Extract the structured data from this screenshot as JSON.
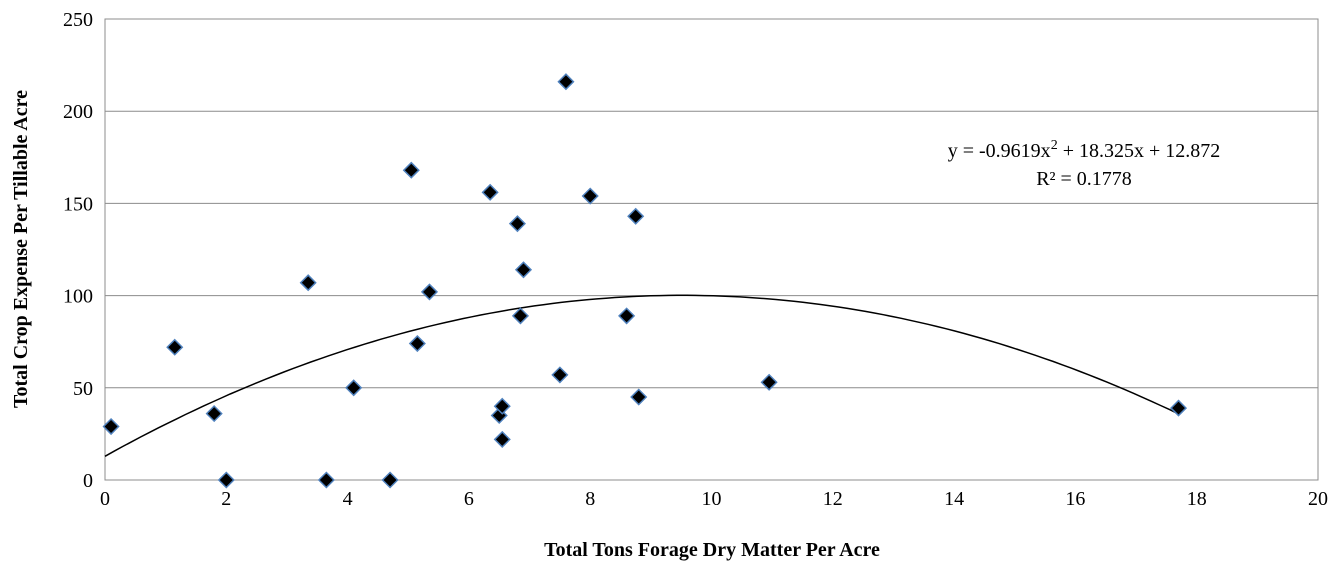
{
  "chart_data": {
    "type": "scatter",
    "xlabel": "Total Tons Forage Dry Matter Per Acre",
    "ylabel": "Total Crop Expense Per Tillable Acre",
    "xlim": [
      0,
      20
    ],
    "ylim": [
      0,
      250
    ],
    "x_ticks": [
      0,
      2,
      4,
      6,
      8,
      10,
      12,
      14,
      16,
      18,
      20
    ],
    "y_ticks": [
      0,
      50,
      100,
      150,
      200,
      250
    ],
    "grid": "horizontal",
    "marker": "diamond",
    "marker_color": "#000000",
    "marker_edge_color": "#4f81bd",
    "points": [
      {
        "x": 0.1,
        "y": 29
      },
      {
        "x": 1.15,
        "y": 72
      },
      {
        "x": 1.8,
        "y": 36
      },
      {
        "x": 2.0,
        "y": 0
      },
      {
        "x": 3.35,
        "y": 107
      },
      {
        "x": 3.65,
        "y": 0
      },
      {
        "x": 4.1,
        "y": 50
      },
      {
        "x": 4.7,
        "y": 0
      },
      {
        "x": 5.05,
        "y": 168
      },
      {
        "x": 5.15,
        "y": 74
      },
      {
        "x": 5.35,
        "y": 102
      },
      {
        "x": 6.35,
        "y": 156
      },
      {
        "x": 6.5,
        "y": 35
      },
      {
        "x": 6.55,
        "y": 40
      },
      {
        "x": 6.55,
        "y": 22
      },
      {
        "x": 6.8,
        "y": 139
      },
      {
        "x": 6.85,
        "y": 89
      },
      {
        "x": 6.9,
        "y": 114
      },
      {
        "x": 7.5,
        "y": 57
      },
      {
        "x": 7.6,
        "y": 216
      },
      {
        "x": 8.0,
        "y": 154
      },
      {
        "x": 8.6,
        "y": 89
      },
      {
        "x": 8.75,
        "y": 143
      },
      {
        "x": 8.8,
        "y": 45
      },
      {
        "x": 10.95,
        "y": 53
      },
      {
        "x": 17.7,
        "y": 39
      }
    ],
    "trendline": {
      "type": "polynomial",
      "coefficients": [
        -0.9619,
        18.325,
        12.872
      ],
      "equation_parts": [
        "y = -0.9619x",
        "2",
        " + 18.325x + 12.872"
      ],
      "r_squared_label": "R² = 0.1778",
      "x_range": [
        0,
        17.7
      ],
      "color": "#000000"
    }
  }
}
